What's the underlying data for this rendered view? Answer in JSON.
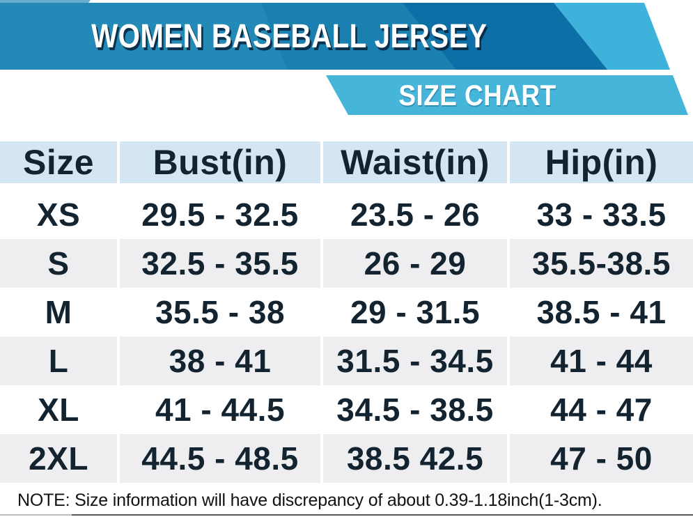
{
  "banner": {
    "title": "WOMEN BASEBALL JERSEY",
    "subtitle": "SIZE CHART"
  },
  "chart_data": {
    "type": "table",
    "title": "WOMEN BASEBALL JERSEY",
    "subtitle": "SIZE CHART",
    "columns": [
      "Size",
      "Bust(in)",
      "Waist(in)",
      "Hip(in)"
    ],
    "rows": [
      [
        "XS",
        "29.5 - 32.5",
        "23.5 - 26",
        "33 - 33.5"
      ],
      [
        "S",
        "32.5 - 35.5",
        "26 - 29",
        "35.5-38.5"
      ],
      [
        "M",
        "35.5 - 38",
        "29 - 31.5",
        "38.5 - 41"
      ],
      [
        "L",
        "38 - 41",
        "31.5 - 34.5",
        "41 - 44"
      ],
      [
        "XL",
        "41 - 44.5",
        "34.5 - 38.5",
        "44 - 47"
      ],
      [
        "2XL",
        "44.5 - 48.5",
        "38.5 42.5",
        "47 - 50"
      ]
    ],
    "units": "inches",
    "layout": "alternating row shading: white / light gray; light blue header row"
  },
  "note": "NOTE: Size information will have discrepancy of about 0.39-1.18inch(1-3cm).",
  "colors": {
    "banner_medium_blue": "#1A80B0",
    "banner_dark_blue": "#0D6FA5",
    "banner_cyan": "#46B5DA",
    "banner_light_strip": "#68ADD0",
    "header_row_bg": "#D3E6F1",
    "alt_row_bg": "#EEEEF1",
    "table_text": "#132430",
    "title_text": "#FFFFFF",
    "note_text": "#121212"
  }
}
